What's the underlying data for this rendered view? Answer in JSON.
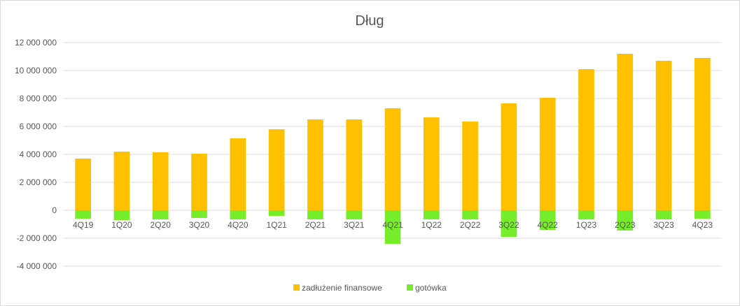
{
  "chart_data": {
    "type": "bar",
    "title": "Dług",
    "xlabel": "",
    "ylabel": "",
    "categories": [
      "4Q19",
      "1Q20",
      "2Q20",
      "3Q20",
      "4Q20",
      "1Q21",
      "2Q21",
      "3Q21",
      "4Q21",
      "1Q22",
      "2Q22",
      "3Q22",
      "4Q22",
      "1Q23",
      "2Q23",
      "3Q23",
      "4Q23"
    ],
    "series": [
      {
        "name": "zadłużenie finansowe",
        "color": "#ffc000",
        "values": [
          3700000,
          4200000,
          4150000,
          4050000,
          5150000,
          5800000,
          6500000,
          6500000,
          7300000,
          6650000,
          6350000,
          7650000,
          8050000,
          10100000,
          11200000,
          10700000,
          10900000
        ]
      },
      {
        "name": "gotówka",
        "color": "#76ec2a",
        "values": [
          -600000,
          -700000,
          -650000,
          -550000,
          -650000,
          -400000,
          -650000,
          -650000,
          -2400000,
          -650000,
          -650000,
          -1900000,
          -1400000,
          -650000,
          -1450000,
          -650000,
          -600000
        ]
      }
    ],
    "ylim": [
      -4000000,
      12000000
    ],
    "yticks": [
      12000000,
      10000000,
      8000000,
      6000000,
      4000000,
      2000000,
      0,
      -2000000,
      -4000000
    ],
    "ytick_labels": [
      "12 000 000",
      "10 000 000",
      "8 000 000",
      "6 000 000",
      "4 000 000",
      "2 000 000",
      "0",
      "-2 000 000",
      "-4 000 000"
    ],
    "grid": true,
    "stacked": true,
    "legend": "bottom-center"
  }
}
